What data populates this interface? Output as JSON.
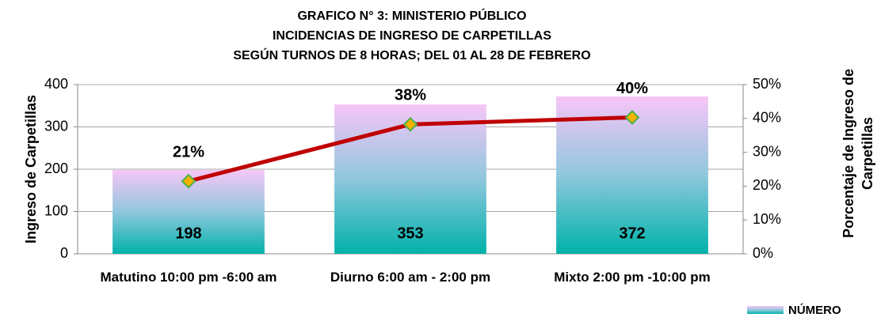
{
  "chart_data": {
    "type": "bar",
    "title": [
      "GRAFICO  N° 3: MINISTERIO PÚBLICO",
      "INCIDENCIAS DE INGRESO DE CARPETILLAS",
      "SEGÚN  TURNOS DE 8 HORAS; DEL 01 AL 28 DE FEBRERO"
    ],
    "ylabel": "Ingreso de Carpetillas",
    "y2label": [
      "Porcentaje de Ingreso de",
      "Carpetillas"
    ],
    "categories": [
      "Matutino 10:00 pm -6:00 am",
      "Diurno 6:00 am - 2:00 pm",
      "Mixto 2:00 pm -10:00 pm"
    ],
    "series": [
      {
        "name": "NÚMERO",
        "type": "bar",
        "color": [
          "#f7c6f7",
          "#8fc7dd",
          "#00b2aa"
        ],
        "values": [
          198,
          353,
          372
        ]
      },
      {
        "type": "line",
        "axis": "y2",
        "color": "#c00000",
        "marker_color": "#f5b400",
        "marker_edge": "#4caf50",
        "values": [
          21.45,
          38.24,
          40.3
        ],
        "value_labels": [
          "21%",
          "38%",
          "40%"
        ]
      }
    ],
    "ylim": [
      0,
      400
    ],
    "yticks": [
      0,
      100,
      200,
      300,
      400
    ],
    "y2lim": [
      0,
      50
    ],
    "y2ticks": [
      {
        "value": 0,
        "label": "0%"
      },
      {
        "value": 10,
        "label": "10%"
      },
      {
        "value": 20,
        "label": "20%"
      },
      {
        "value": 30,
        "label": "30%"
      },
      {
        "value": 40,
        "label": "40%"
      },
      {
        "value": 50,
        "label": "50%"
      }
    ],
    "grid": true,
    "legend": "bottom-right"
  }
}
